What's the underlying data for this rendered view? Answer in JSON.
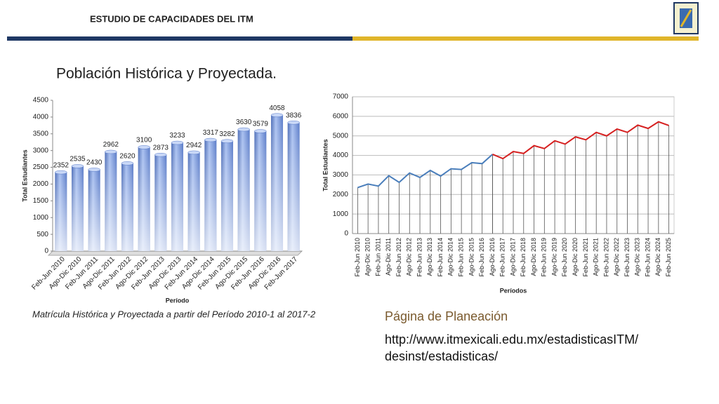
{
  "header": {
    "title": "ESTUDIO DE CAPACIDADES DEL ITM"
  },
  "title": "Población Histórica y Proyectada.",
  "caption": "Matrícula Histórica y Proyectada a partir del Período 2010-1 al 2017-2",
  "link": {
    "label": "Página de Planeación",
    "url_lines": [
      "http://www.itmexicali.edu.mx/estadisticasITM/",
      "desinst/estadisticas/"
    ]
  },
  "chart_data": [
    {
      "type": "bar",
      "xlabel": "Período",
      "ylabel": "Total Estudiantes",
      "categories": [
        "Feb-Jun 2010",
        "Ago-Dic 2010",
        "Feb-Jun 2011",
        "Ago-Dic 2011",
        "Feb-Jun 2012",
        "Ago-Dic 2012",
        "Feb-Jun 2013",
        "Ago-Dic 2013",
        "Feb-Jun 2014",
        "Ago-Dic 2014",
        "Feb-Jun 2015",
        "Ago-Dic 2015",
        "Feb-Jun 2016",
        "Ago-Dic 2016",
        "Feb-Jun 2017"
      ],
      "values": [
        2352,
        2535,
        2430,
        2962,
        2620,
        3100,
        2873,
        3233,
        2942,
        3317,
        3282,
        3630,
        3579,
        4058,
        3836
      ],
      "color": "#6f8fd8",
      "ylim": [
        0,
        4500
      ],
      "yticks": [
        0,
        500,
        1000,
        1500,
        2000,
        2500,
        3000,
        3500,
        4000,
        4500
      ],
      "grid": false
    },
    {
      "type": "line",
      "xlabel": "Períodos",
      "ylabel": "Total Estudiantes",
      "categories": [
        "Feb-Jun 2010",
        "Ago-Dic 2010",
        "Feb-Jun 2011",
        "Ago-Dic 2011",
        "Feb-Jun 2012",
        "Ago-Dic 2012",
        "Feb-Jun 2013",
        "Ago-Dic 2013",
        "Feb-Jun 2014",
        "Ago-Dic 2014",
        "Feb-Jun 2015",
        "Ago-Dic 2015",
        "Feb-Jun 2016",
        "Ago-Dic 2016",
        "Feb-Jun 2017",
        "Ago-Dic 2017",
        "Feb-Jun 2018",
        "Ago-Dic 2018",
        "Feb-Jun 2019",
        "Ago-Dic 2019",
        "Feb-Jun 2020",
        "Ago-Dic 2020",
        "Feb-Jun 2021",
        "Ago-Dic 2021",
        "Feb-Jun 2022",
        "Ago-Dic 2022",
        "Feb-Jun 2023",
        "Ago-Dic 2023",
        "Feb-Jun 2024",
        "Ago-Dic 2024",
        "Feb-Jun 2025"
      ],
      "series": [
        {
          "color": "#4a7ebb",
          "values": [
            2352,
            2535,
            2430,
            2962,
            2620,
            3100,
            2873,
            3233,
            2942,
            3317,
            3282,
            3630,
            3579,
            4058,
            null,
            null,
            null,
            null,
            null,
            null,
            null,
            null,
            null,
            null,
            null,
            null,
            null,
            null,
            null,
            null,
            null
          ]
        },
        {
          "color": "#d62020",
          "values": [
            null,
            null,
            null,
            null,
            null,
            null,
            null,
            null,
            null,
            null,
            null,
            null,
            null,
            4058,
            3836,
            4200,
            4100,
            4500,
            4350,
            4750,
            4580,
            4950,
            4800,
            5180,
            5000,
            5350,
            5180,
            5550,
            5380,
            5720,
            5530
          ]
        }
      ],
      "ylim": [
        0,
        7000
      ],
      "yticks": [
        0,
        1000,
        2000,
        3000,
        4000,
        5000,
        6000,
        7000
      ],
      "grid": true
    }
  ]
}
